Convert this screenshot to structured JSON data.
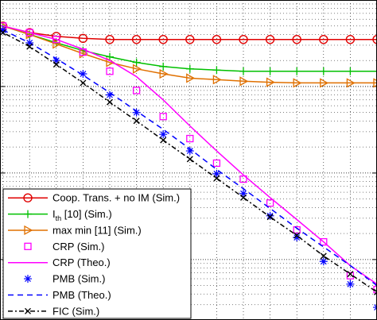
{
  "chart_data": {
    "type": "line",
    "title": "",
    "xlabel": "",
    "ylabel": "",
    "y_scale": "log",
    "x": [
      0,
      1,
      2,
      3,
      4,
      5,
      6,
      7,
      8,
      9,
      10,
      11,
      12,
      13,
      14,
      15
    ],
    "xlim": [
      0,
      15
    ],
    "ylim": [
      0.0002,
      1
    ],
    "grid": true,
    "legend_position": "lower-left",
    "series": [
      {
        "name": "Coop. Trans. + no IM (Sim.)",
        "color": "#e00000",
        "linestyle": "solid",
        "marker": "circle",
        "values": [
          0.6,
          0.5,
          0.42,
          0.38,
          0.36,
          0.35,
          0.35,
          0.35,
          0.35,
          0.35,
          0.35,
          0.35,
          0.35,
          0.35,
          0.35,
          0.35
        ]
      },
      {
        "name": "I",
        "name_sub": "th",
        "name_suffix": " [10] (Sim.)",
        "color": "#00c000",
        "linestyle": "solid",
        "marker": "plus",
        "values": [
          0.6,
          0.5,
          0.4,
          0.32,
          0.26,
          0.22,
          0.19,
          0.17,
          0.16,
          0.155,
          0.15,
          0.15,
          0.15,
          0.15,
          0.15,
          0.15
        ]
      },
      {
        "name": "max min [11] (Sim.)",
        "color": "#e07000",
        "linestyle": "solid",
        "marker": "triangle-right",
        "values": [
          0.6,
          0.5,
          0.4,
          0.31,
          0.24,
          0.19,
          0.16,
          0.14,
          0.125,
          0.12,
          0.115,
          0.112,
          0.11,
          0.11,
          0.11,
          0.11
        ]
      },
      {
        "name": "CRP (Sim.)",
        "color": "#ff00ff",
        "linestyle": "none",
        "marker": "square",
        "values": [
          0.6,
          0.5,
          0.42,
          0.35,
          0.25,
          0.15,
          0.09,
          0.045,
          0.025,
          0.013,
          0.0085,
          0.0045,
          0.0022,
          0.0016,
          0.00065,
          0.00045
        ]
      },
      {
        "name": "CRP (Theo.)",
        "color": "#ff00ff",
        "linestyle": "solid",
        "marker": "none",
        "values": [
          0.6,
          0.5,
          0.42,
          0.35,
          0.27,
          0.2,
          0.13,
          0.07,
          0.035,
          0.018,
          0.0095,
          0.0052,
          0.0029,
          0.0016,
          0.00085,
          0.00052
        ]
      },
      {
        "name": "PMB (Sim.)",
        "color": "#0000ff",
        "linestyle": "none",
        "marker": "asterisk",
        "values": [
          0.6,
          0.45,
          0.32,
          0.2,
          0.14,
          0.08,
          0.05,
          0.028,
          0.018,
          0.0098,
          0.0058,
          0.0032,
          0.0018,
          0.00095,
          0.00052,
          0.00028
        ]
      },
      {
        "name": "PMB (Theo.)",
        "color": "#0000ff",
        "linestyle": "dashed",
        "marker": "none",
        "values": [
          0.6,
          0.45,
          0.32,
          0.21,
          0.135,
          0.085,
          0.052,
          0.032,
          0.019,
          0.011,
          0.0066,
          0.0039,
          0.0023,
          0.0014,
          0.00085,
          0.0005
        ]
      },
      {
        "name": "FIC (Sim.)",
        "color": "#000000",
        "linestyle": "dashdot",
        "marker": "cross",
        "values": [
          0.6,
          0.42,
          0.29,
          0.18,
          0.11,
          0.066,
          0.04,
          0.024,
          0.0145,
          0.0087,
          0.0052,
          0.0031,
          0.0019,
          0.0011,
          0.00068,
          0.00042
        ]
      }
    ]
  }
}
